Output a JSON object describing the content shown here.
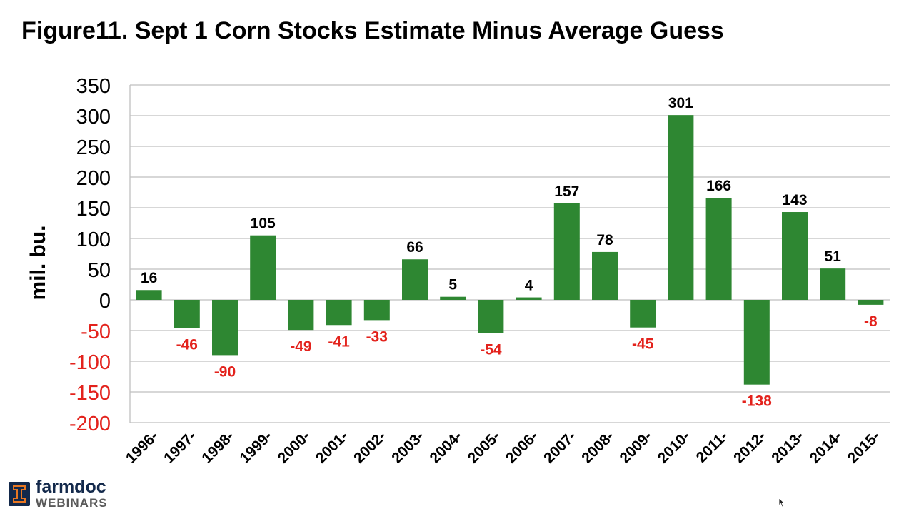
{
  "title": "Figure11. Sept 1 Corn Stocks Estimate Minus Average Guess",
  "logo": {
    "main": "farmdoc",
    "sub": "WEBINARS"
  },
  "colors": {
    "bar": "#2e8732",
    "positive_label": "#000000",
    "negative_label": "#e3221c",
    "grid": "#bfbfbf",
    "axis_text": "#000000",
    "negative_axis_text": "#e3221c"
  },
  "chart_data": {
    "type": "bar",
    "title": "Figure11. Sept 1 Corn Stocks Estimate Minus Average Guess",
    "xlabel": "",
    "ylabel": "mil. bu.",
    "ylim": [
      -200,
      350
    ],
    "yticks": [
      350,
      300,
      250,
      200,
      150,
      100,
      50,
      0,
      -50,
      -100,
      -150,
      -200
    ],
    "grid": true,
    "legend": "none",
    "categories": [
      "1996-",
      "1997-",
      "1998-",
      "1999-",
      "2000-",
      "2001-",
      "2002-",
      "2003-",
      "2004-",
      "2005-",
      "2006-",
      "2007-",
      "2008-",
      "2009-",
      "2010-",
      "2011-",
      "2012-",
      "2013-",
      "2014-",
      "2015-"
    ],
    "values": [
      16,
      -46,
      -90,
      105,
      -49,
      -41,
      -33,
      66,
      5,
      -54,
      4,
      157,
      78,
      -45,
      301,
      166,
      -138,
      143,
      51,
      -8
    ]
  }
}
